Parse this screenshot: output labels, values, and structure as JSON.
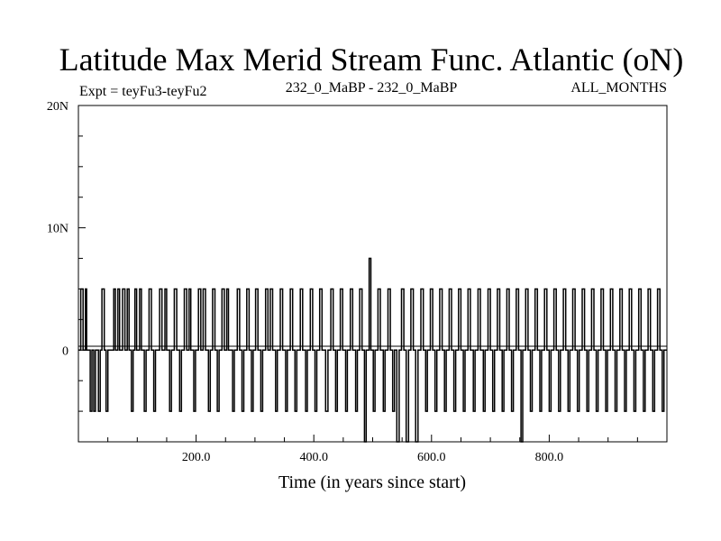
{
  "chart_data": {
    "type": "line",
    "title": "Latitude Max Merid Stream Func. Atlantic (oN)",
    "subtitle_left": "Expt = teyFu3-teyFu2",
    "subtitle_center": "232_0_MaBP - 232_0_MaBP",
    "subtitle_right": "ALL_MONTHS",
    "xlabel": "Time (in years since start)",
    "ylabel": "",
    "xlim": [
      0,
      1000
    ],
    "ylim": [
      -7.5,
      20
    ],
    "x_ticks": [
      {
        "value": 200,
        "label": "200.0"
      },
      {
        "value": 400,
        "label": "400.0"
      },
      {
        "value": 600,
        "label": "600.0"
      },
      {
        "value": 800,
        "label": "800.0"
      }
    ],
    "y_ticks": [
      {
        "value": 0,
        "label": "0"
      },
      {
        "value": 10,
        "label": "10N"
      },
      {
        "value": 20,
        "label": "20N"
      }
    ],
    "grid": false,
    "series": [
      {
        "color": "#000000",
        "steps": [
          [
            0,
            0
          ],
          [
            4,
            5
          ],
          [
            8,
            0
          ],
          [
            12,
            5
          ],
          [
            14,
            0
          ],
          [
            20,
            -5
          ],
          [
            23,
            0
          ],
          [
            26,
            -5
          ],
          [
            29,
            0
          ],
          [
            34,
            -5
          ],
          [
            37,
            0
          ],
          [
            40,
            5
          ],
          [
            44,
            0
          ],
          [
            47,
            -5
          ],
          [
            50,
            0
          ],
          [
            60,
            5
          ],
          [
            63,
            0
          ],
          [
            67,
            5
          ],
          [
            70,
            0
          ],
          [
            75,
            5
          ],
          [
            79,
            0
          ],
          [
            83,
            5
          ],
          [
            86,
            0
          ],
          [
            90,
            -5
          ],
          [
            93,
            0
          ],
          [
            96,
            5
          ],
          [
            99,
            0
          ],
          [
            104,
            5
          ],
          [
            107,
            0
          ],
          [
            112,
            -5
          ],
          [
            115,
            0
          ],
          [
            120,
            5
          ],
          [
            124,
            0
          ],
          [
            128,
            -5
          ],
          [
            131,
            0
          ],
          [
            138,
            5
          ],
          [
            142,
            0
          ],
          [
            147,
            5
          ],
          [
            150,
            0
          ],
          [
            155,
            -5
          ],
          [
            158,
            0
          ],
          [
            163,
            5
          ],
          [
            167,
            0
          ],
          [
            172,
            -5
          ],
          [
            175,
            0
          ],
          [
            180,
            5
          ],
          [
            184,
            0
          ],
          [
            188,
            5
          ],
          [
            191,
            0
          ],
          [
            196,
            -5
          ],
          [
            199,
            0
          ],
          [
            204,
            5
          ],
          [
            208,
            0
          ],
          [
            212,
            5
          ],
          [
            216,
            0
          ],
          [
            221,
            -5
          ],
          [
            224,
            0
          ],
          [
            228,
            5
          ],
          [
            232,
            0
          ],
          [
            236,
            -5
          ],
          [
            239,
            0
          ],
          [
            244,
            5
          ],
          [
            248,
            0
          ],
          [
            252,
            5
          ],
          [
            255,
            0
          ],
          [
            262,
            -5
          ],
          [
            265,
            0
          ],
          [
            270,
            5
          ],
          [
            274,
            0
          ],
          [
            278,
            -5
          ],
          [
            281,
            0
          ],
          [
            286,
            5
          ],
          [
            290,
            0
          ],
          [
            294,
            -5
          ],
          [
            297,
            0
          ],
          [
            301,
            5
          ],
          [
            305,
            0
          ],
          [
            310,
            -5
          ],
          [
            313,
            0
          ],
          [
            318,
            5
          ],
          [
            322,
            0
          ],
          [
            326,
            5
          ],
          [
            330,
            0
          ],
          [
            335,
            -5
          ],
          [
            338,
            0
          ],
          [
            343,
            5
          ],
          [
            347,
            0
          ],
          [
            352,
            -5
          ],
          [
            355,
            0
          ],
          [
            360,
            5
          ],
          [
            364,
            0
          ],
          [
            368,
            -5
          ],
          [
            371,
            0
          ],
          [
            377,
            5
          ],
          [
            381,
            0
          ],
          [
            386,
            -5
          ],
          [
            389,
            0
          ],
          [
            394,
            5
          ],
          [
            398,
            0
          ],
          [
            402,
            -5
          ],
          [
            405,
            0
          ],
          [
            410,
            5
          ],
          [
            414,
            0
          ],
          [
            420,
            -5
          ],
          [
            424,
            0
          ],
          [
            429,
            5
          ],
          [
            433,
            0
          ],
          [
            437,
            -5
          ],
          [
            440,
            0
          ],
          [
            445,
            5
          ],
          [
            449,
            0
          ],
          [
            454,
            -5
          ],
          [
            457,
            0
          ],
          [
            462,
            5
          ],
          [
            466,
            0
          ],
          [
            471,
            -5
          ],
          [
            474,
            0
          ],
          [
            478,
            5
          ],
          [
            482,
            0
          ],
          [
            486,
            -7.5
          ],
          [
            489,
            0
          ],
          [
            494,
            7.5
          ],
          [
            497,
            0
          ],
          [
            501,
            -5
          ],
          [
            504,
            0
          ],
          [
            509,
            5
          ],
          [
            513,
            0
          ],
          [
            518,
            -5
          ],
          [
            521,
            0
          ],
          [
            526,
            5
          ],
          [
            530,
            0
          ],
          [
            534,
            -5
          ],
          [
            537,
            0
          ],
          [
            541,
            -7.5
          ],
          [
            545,
            0
          ],
          [
            549,
            5
          ],
          [
            553,
            0
          ],
          [
            557,
            -7.5
          ],
          [
            561,
            0
          ],
          [
            565,
            5
          ],
          [
            569,
            0
          ],
          [
            573,
            -7.5
          ],
          [
            577,
            0
          ],
          [
            582,
            5
          ],
          [
            586,
            0
          ],
          [
            590,
            -5
          ],
          [
            593,
            0
          ],
          [
            598,
            5
          ],
          [
            602,
            0
          ],
          [
            606,
            -5
          ],
          [
            609,
            0
          ],
          [
            614,
            5
          ],
          [
            618,
            0
          ],
          [
            622,
            -5
          ],
          [
            625,
            0
          ],
          [
            630,
            5
          ],
          [
            634,
            0
          ],
          [
            638,
            -5
          ],
          [
            641,
            0
          ],
          [
            646,
            5
          ],
          [
            650,
            0
          ],
          [
            654,
            -5
          ],
          [
            657,
            0
          ],
          [
            662,
            5
          ],
          [
            666,
            0
          ],
          [
            671,
            -5
          ],
          [
            674,
            0
          ],
          [
            679,
            5
          ],
          [
            683,
            0
          ],
          [
            688,
            -5
          ],
          [
            691,
            0
          ],
          [
            696,
            5
          ],
          [
            700,
            0
          ],
          [
            704,
            -5
          ],
          [
            707,
            0
          ],
          [
            712,
            5
          ],
          [
            716,
            0
          ],
          [
            720,
            -5
          ],
          [
            723,
            0
          ],
          [
            728,
            5
          ],
          [
            732,
            0
          ],
          [
            736,
            -5
          ],
          [
            739,
            0
          ],
          [
            744,
            5
          ],
          [
            748,
            0
          ],
          [
            752,
            -7.5
          ],
          [
            755,
            0
          ],
          [
            760,
            5
          ],
          [
            764,
            0
          ],
          [
            768,
            -5
          ],
          [
            771,
            0
          ],
          [
            776,
            5
          ],
          [
            780,
            0
          ],
          [
            784,
            -5
          ],
          [
            787,
            0
          ],
          [
            792,
            5
          ],
          [
            796,
            0
          ],
          [
            800,
            -5
          ],
          [
            803,
            0
          ],
          [
            808,
            5
          ],
          [
            812,
            0
          ],
          [
            816,
            -5
          ],
          [
            819,
            0
          ],
          [
            824,
            5
          ],
          [
            828,
            0
          ],
          [
            832,
            -5
          ],
          [
            835,
            0
          ],
          [
            840,
            5
          ],
          [
            844,
            0
          ],
          [
            848,
            -5
          ],
          [
            851,
            0
          ],
          [
            856,
            5
          ],
          [
            860,
            0
          ],
          [
            864,
            -5
          ],
          [
            867,
            0
          ],
          [
            872,
            5
          ],
          [
            876,
            0
          ],
          [
            880,
            -5
          ],
          [
            883,
            0
          ],
          [
            888,
            5
          ],
          [
            892,
            0
          ],
          [
            896,
            -5
          ],
          [
            899,
            0
          ],
          [
            904,
            5
          ],
          [
            908,
            0
          ],
          [
            912,
            -5
          ],
          [
            915,
            0
          ],
          [
            920,
            5
          ],
          [
            924,
            0
          ],
          [
            928,
            -5
          ],
          [
            931,
            0
          ],
          [
            936,
            5
          ],
          [
            940,
            0
          ],
          [
            944,
            -5
          ],
          [
            947,
            0
          ],
          [
            952,
            5
          ],
          [
            956,
            0
          ],
          [
            960,
            -5
          ],
          [
            963,
            0
          ],
          [
            968,
            5
          ],
          [
            972,
            0
          ],
          [
            976,
            -5
          ],
          [
            979,
            0
          ],
          [
            984,
            5
          ],
          [
            988,
            0
          ],
          [
            992,
            -5
          ],
          [
            995,
            0
          ],
          [
            1000,
            0
          ]
        ]
      }
    ]
  }
}
